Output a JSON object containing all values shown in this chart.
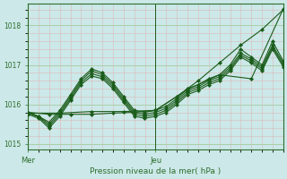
{
  "bg_color": "#cce8e8",
  "line_color": "#1a5c1a",
  "marker_color": "#1a5c1a",
  "axis_color": "#2d6e2d",
  "text_color": "#2d6e2d",
  "ylim": [
    1014.85,
    1018.55
  ],
  "yticks": [
    1015,
    1016,
    1017,
    1018
  ],
  "xlabel": "Pression niveau de la mer( hPa )",
  "xtick_labels": [
    "Mer",
    "Jeu"
  ],
  "xtick_positions": [
    0.0,
    0.5
  ],
  "vline_x": 0.5,
  "minor_grid_color": "#ddb8b8",
  "major_grid_color": "#aad0aa",
  "series": [
    {
      "x": [
        0.0,
        0.083,
        0.167,
        0.25,
        0.333,
        0.417,
        0.5,
        0.583,
        0.667,
        0.75,
        0.833,
        0.917,
        1.0
      ],
      "y": [
        1015.8,
        1015.75,
        1015.75,
        1015.75,
        1015.78,
        1015.8,
        1015.85,
        1016.2,
        1016.6,
        1017.05,
        1017.5,
        1017.9,
        1018.4
      ]
    },
    {
      "x": [
        0.0,
        0.042,
        0.083,
        0.125,
        0.167,
        0.208,
        0.25,
        0.292,
        0.333,
        0.375,
        0.417,
        0.458,
        0.5,
        0.542,
        0.583,
        0.625,
        0.667,
        0.708,
        0.75,
        0.792,
        0.833,
        0.875,
        0.917,
        0.958,
        1.0
      ],
      "y": [
        1015.8,
        1015.7,
        1015.55,
        1015.85,
        1016.25,
        1016.65,
        1016.9,
        1016.8,
        1016.55,
        1016.2,
        1015.85,
        1015.8,
        1015.85,
        1015.95,
        1016.15,
        1016.4,
        1016.5,
        1016.65,
        1016.75,
        1017.0,
        1017.4,
        1017.2,
        1017.0,
        1017.6,
        1017.1
      ]
    },
    {
      "x": [
        0.0,
        0.042,
        0.083,
        0.125,
        0.167,
        0.208,
        0.25,
        0.292,
        0.333,
        0.375,
        0.417,
        0.458,
        0.5,
        0.542,
        0.583,
        0.625,
        0.667,
        0.708,
        0.75,
        0.792,
        0.833,
        0.875,
        0.917,
        0.958,
        1.0
      ],
      "y": [
        1015.8,
        1015.7,
        1015.5,
        1015.8,
        1016.2,
        1016.6,
        1016.85,
        1016.75,
        1016.5,
        1016.15,
        1015.8,
        1015.75,
        1015.8,
        1015.9,
        1016.1,
        1016.35,
        1016.45,
        1016.6,
        1016.7,
        1016.95,
        1017.3,
        1017.15,
        1016.95,
        1017.5,
        1017.05
      ]
    },
    {
      "x": [
        0.0,
        0.042,
        0.083,
        0.125,
        0.167,
        0.208,
        0.25,
        0.292,
        0.333,
        0.375,
        0.417,
        0.458,
        0.5,
        0.542,
        0.583,
        0.625,
        0.667,
        0.708,
        0.75,
        0.792,
        0.833,
        0.875,
        0.917,
        0.958,
        1.0
      ],
      "y": [
        1015.78,
        1015.68,
        1015.45,
        1015.75,
        1016.15,
        1016.55,
        1016.78,
        1016.7,
        1016.45,
        1016.1,
        1015.75,
        1015.7,
        1015.75,
        1015.85,
        1016.05,
        1016.3,
        1016.4,
        1016.55,
        1016.65,
        1016.9,
        1017.25,
        1017.1,
        1016.9,
        1017.45,
        1017.0
      ]
    },
    {
      "x": [
        0.0,
        0.042,
        0.083,
        0.125,
        0.167,
        0.208,
        0.25,
        0.292,
        0.333,
        0.375,
        0.417,
        0.458,
        0.5,
        0.542,
        0.583,
        0.625,
        0.667,
        0.708,
        0.75,
        0.792,
        0.833,
        0.875,
        0.917,
        0.958,
        1.0
      ],
      "y": [
        1015.75,
        1015.65,
        1015.4,
        1015.7,
        1016.1,
        1016.5,
        1016.72,
        1016.65,
        1016.4,
        1016.05,
        1015.7,
        1015.65,
        1015.7,
        1015.8,
        1016.0,
        1016.25,
        1016.35,
        1016.5,
        1016.6,
        1016.85,
        1017.2,
        1017.05,
        1016.85,
        1017.4,
        1016.95
      ]
    },
    {
      "x": [
        0.0,
        0.125,
        0.25,
        0.375,
        0.5,
        0.625,
        0.75,
        0.875,
        1.0
      ],
      "y": [
        1015.78,
        1015.78,
        1015.82,
        1015.82,
        1015.85,
        1016.38,
        1016.75,
        1016.65,
        1018.42
      ]
    }
  ]
}
